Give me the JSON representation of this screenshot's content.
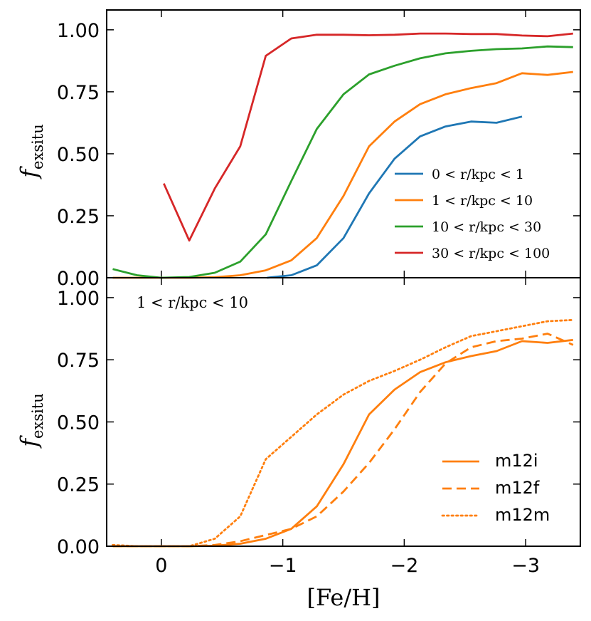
{
  "chart_data": [
    {
      "type": "line",
      "panel": "top",
      "ylabel": "f_exsitu",
      "ylabel_main": "f",
      "ylabel_sub": "exsitu",
      "xlim": [
        0.45,
        -3.45
      ],
      "ylim": [
        0.0,
        1.08
      ],
      "xticks": [
        0,
        -1,
        -2,
        -3
      ],
      "yticks": [
        0.0,
        0.25,
        0.5,
        0.75,
        1.0
      ],
      "ytick_labels": [
        "0.00",
        "0.25",
        "0.50",
        "0.75",
        "1.00"
      ],
      "legend_position": "lower-right",
      "series": [
        {
          "name": "0 < r/kpc < 1",
          "color": "#1f77b4",
          "dash": "solid",
          "points": [
            [
              -0.87,
              0.0
            ],
            [
              -1.07,
              0.01
            ],
            [
              -1.28,
              0.05
            ],
            [
              -1.5,
              0.16
            ],
            [
              -1.71,
              0.34
            ],
            [
              -1.92,
              0.48
            ],
            [
              -2.13,
              0.57
            ],
            [
              -2.34,
              0.61
            ],
            [
              -2.55,
              0.63
            ],
            [
              -2.76,
              0.625
            ],
            [
              -2.97,
              0.65
            ]
          ]
        },
        {
          "name": "1 < r/kpc < 10",
          "color": "#ff7f0e",
          "dash": "solid",
          "points": [
            [
              0.4,
              0.0
            ],
            [
              0.2,
              0.0
            ],
            [
              0.0,
              0.0
            ],
            [
              -0.23,
              0.0
            ],
            [
              -0.44,
              0.002
            ],
            [
              -0.65,
              0.01
            ],
            [
              -0.86,
              0.03
            ],
            [
              -1.07,
              0.07
            ],
            [
              -1.28,
              0.16
            ],
            [
              -1.5,
              0.33
            ],
            [
              -1.71,
              0.53
            ],
            [
              -1.92,
              0.63
            ],
            [
              -2.13,
              0.7
            ],
            [
              -2.34,
              0.74
            ],
            [
              -2.55,
              0.765
            ],
            [
              -2.76,
              0.785
            ],
            [
              -2.97,
              0.825
            ],
            [
              -3.18,
              0.818
            ],
            [
              -3.39,
              0.83
            ]
          ]
        },
        {
          "name": "10 < r/kpc < 30",
          "color": "#2ca02c",
          "dash": "solid",
          "points": [
            [
              0.4,
              0.035
            ],
            [
              0.2,
              0.01
            ],
            [
              0.0,
              0.0
            ],
            [
              -0.23,
              0.003
            ],
            [
              -0.44,
              0.02
            ],
            [
              -0.65,
              0.065
            ],
            [
              -0.86,
              0.175
            ],
            [
              -1.07,
              0.39
            ],
            [
              -1.28,
              0.6
            ],
            [
              -1.5,
              0.74
            ],
            [
              -1.71,
              0.82
            ],
            [
              -1.92,
              0.855
            ],
            [
              -2.13,
              0.885
            ],
            [
              -2.34,
              0.905
            ],
            [
              -2.55,
              0.915
            ],
            [
              -2.76,
              0.922
            ],
            [
              -2.97,
              0.925
            ],
            [
              -3.18,
              0.933
            ],
            [
              -3.39,
              0.93
            ]
          ]
        },
        {
          "name": "30 < r/kpc < 100",
          "color": "#d62728",
          "dash": "solid",
          "points": [
            [
              -0.02,
              0.38
            ],
            [
              -0.23,
              0.15
            ],
            [
              -0.44,
              0.36
            ],
            [
              -0.65,
              0.53
            ],
            [
              -0.86,
              0.895
            ],
            [
              -1.07,
              0.965
            ],
            [
              -1.28,
              0.98
            ],
            [
              -1.5,
              0.98
            ],
            [
              -1.71,
              0.978
            ],
            [
              -1.92,
              0.98
            ],
            [
              -2.13,
              0.985
            ],
            [
              -2.34,
              0.985
            ],
            [
              -2.55,
              0.983
            ],
            [
              -2.76,
              0.983
            ],
            [
              -2.97,
              0.977
            ],
            [
              -3.18,
              0.974
            ],
            [
              -3.39,
              0.985
            ]
          ]
        }
      ]
    },
    {
      "type": "line",
      "panel": "bottom",
      "annotation": "1 < r/kpc < 10",
      "xlabel": "[Fe/H]",
      "ylabel": "f_exsitu",
      "ylabel_main": "f",
      "ylabel_sub": "exsitu",
      "xlim": [
        0.45,
        -3.45
      ],
      "ylim": [
        0.0,
        1.08
      ],
      "xticks": [
        0,
        -1,
        -2,
        -3
      ],
      "xtick_labels": [
        "0",
        "−1",
        "−2",
        "−3"
      ],
      "yticks": [
        0.0,
        0.25,
        0.5,
        0.75,
        1.0
      ],
      "ytick_labels": [
        "0.00",
        "0.25",
        "0.50",
        "0.75",
        "1.00"
      ],
      "legend_position": "lower-right",
      "series": [
        {
          "name": "m12i",
          "color": "#ff7f0e",
          "dash": "solid",
          "points": [
            [
              0.4,
              0.0
            ],
            [
              0.2,
              0.0
            ],
            [
              0.0,
              0.0
            ],
            [
              -0.23,
              0.0
            ],
            [
              -0.44,
              0.002
            ],
            [
              -0.65,
              0.01
            ],
            [
              -0.86,
              0.03
            ],
            [
              -1.07,
              0.07
            ],
            [
              -1.28,
              0.16
            ],
            [
              -1.5,
              0.33
            ],
            [
              -1.71,
              0.53
            ],
            [
              -1.92,
              0.63
            ],
            [
              -2.13,
              0.7
            ],
            [
              -2.34,
              0.74
            ],
            [
              -2.55,
              0.765
            ],
            [
              -2.76,
              0.785
            ],
            [
              -2.97,
              0.825
            ],
            [
              -3.18,
              0.818
            ],
            [
              -3.39,
              0.83
            ]
          ]
        },
        {
          "name": "m12f",
          "color": "#ff7f0e",
          "dash": "dashed",
          "points": [
            [
              0.4,
              0.0
            ],
            [
              0.2,
              0.0
            ],
            [
              0.0,
              0.0
            ],
            [
              -0.23,
              0.0
            ],
            [
              -0.44,
              0.005
            ],
            [
              -0.65,
              0.02
            ],
            [
              -0.86,
              0.045
            ],
            [
              -1.07,
              0.07
            ],
            [
              -1.28,
              0.12
            ],
            [
              -1.5,
              0.22
            ],
            [
              -1.71,
              0.335
            ],
            [
              -1.92,
              0.47
            ],
            [
              -2.13,
              0.62
            ],
            [
              -2.34,
              0.735
            ],
            [
              -2.55,
              0.8
            ],
            [
              -2.76,
              0.825
            ],
            [
              -2.97,
              0.835
            ],
            [
              -3.18,
              0.855
            ],
            [
              -3.39,
              0.81
            ]
          ]
        },
        {
          "name": "m12m",
          "color": "#ff7f0e",
          "dash": "dotted",
          "points": [
            [
              0.4,
              0.005
            ],
            [
              0.2,
              0.0
            ],
            [
              0.0,
              0.0
            ],
            [
              -0.23,
              0.0
            ],
            [
              -0.44,
              0.03
            ],
            [
              -0.65,
              0.12
            ],
            [
              -0.86,
              0.35
            ],
            [
              -1.07,
              0.44
            ],
            [
              -1.28,
              0.53
            ],
            [
              -1.5,
              0.61
            ],
            [
              -1.71,
              0.665
            ],
            [
              -1.92,
              0.705
            ],
            [
              -2.13,
              0.75
            ],
            [
              -2.34,
              0.8
            ],
            [
              -2.55,
              0.845
            ],
            [
              -2.76,
              0.865
            ],
            [
              -2.97,
              0.885
            ],
            [
              -3.18,
              0.905
            ],
            [
              -3.39,
              0.91
            ]
          ]
        }
      ]
    }
  ]
}
